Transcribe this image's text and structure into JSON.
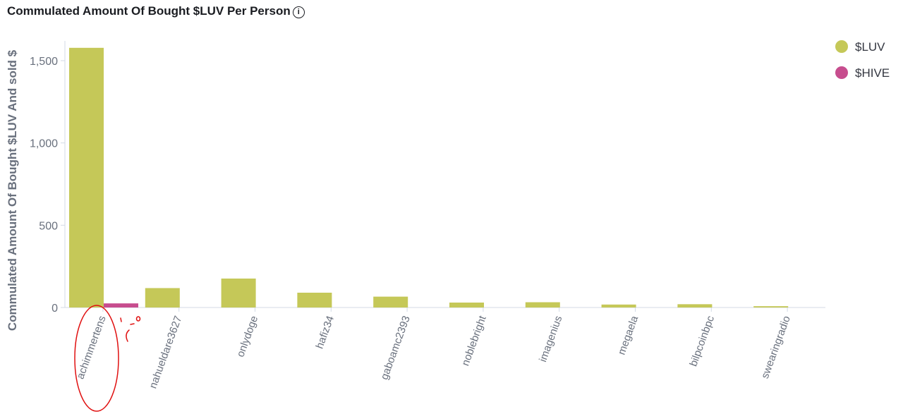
{
  "chart_data": {
    "type": "bar",
    "title": "Commulated Amount Of Bought $LUV Per Person",
    "ylabel": "Commulated Amount Of Bought $LUV And sold $",
    "xlabel": "",
    "ylim": [
      0,
      1600
    ],
    "yticks": [
      0,
      500,
      1000,
      1500
    ],
    "ytick_labels": [
      "0",
      "500",
      "1,000",
      "1,500"
    ],
    "categories": [
      "achimmertens",
      "nahueldare3627",
      "onlydoge",
      "hafiz34",
      "gaboamc2393",
      "noblebright",
      "imagenius",
      "megaela",
      "bilpcoinbpc",
      "swearingradio"
    ],
    "series": [
      {
        "name": "$LUV",
        "color": "#c5c858",
        "values": [
          1578,
          118,
          176,
          90,
          66,
          30,
          32,
          18,
          20,
          8
        ]
      },
      {
        "name": "$HIVE",
        "color": "#c74d8e",
        "values": [
          25,
          0,
          0,
          0,
          0,
          0,
          0,
          0,
          0,
          0
        ]
      }
    ],
    "legend_position": "top-right",
    "annotations": [
      "hand-drawn red circle around achimmertens",
      "hand-drawn red sad face"
    ]
  },
  "info_icon": "info-icon"
}
